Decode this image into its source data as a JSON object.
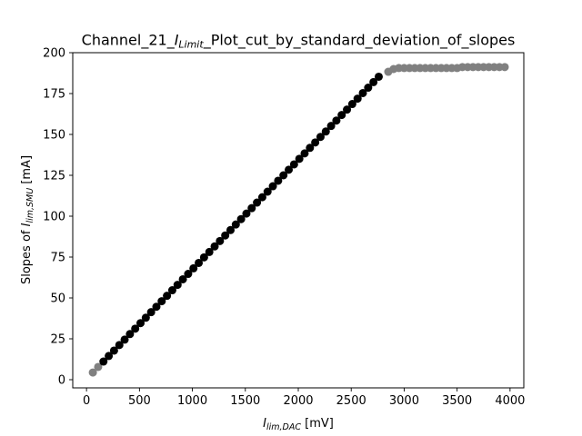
{
  "chart_data": {
    "type": "scatter",
    "title": {
      "prefix": "Channel_21_",
      "italic": "I",
      "sub": "Limit",
      "suffix": "_Plot_cut_by_standard_deviation_of_slopes"
    },
    "xlabel": {
      "italic": "I",
      "sub": "lim,DAC",
      "suffix": " [mV]"
    },
    "ylabel": {
      "prefix": "Slopes of ",
      "italic": "I",
      "sub": "lim,SMU",
      "suffix": " [mA]"
    },
    "xlim": [
      -130,
      4130
    ],
    "ylim": [
      -5,
      200
    ],
    "xticks": [
      0,
      500,
      1000,
      1500,
      2000,
      2500,
      3000,
      3500,
      4000
    ],
    "xtick_labels": [
      "0",
      "500",
      "1000",
      "1500",
      "2000",
      "2500",
      "3000",
      "3500",
      "4000"
    ],
    "yticks": [
      0,
      25,
      50,
      75,
      100,
      125,
      150,
      175,
      200
    ],
    "ytick_labels": [
      "0",
      "25",
      "50",
      "75",
      "100",
      "125",
      "150",
      "175",
      "200"
    ],
    "grid": false,
    "legend": "none",
    "series": [
      {
        "color": "#808080",
        "points": [
          [
            60,
            4.4
          ],
          [
            110,
            7.8
          ],
          [
            2850,
            188.3
          ],
          [
            2900,
            190.0
          ],
          [
            2950,
            190.6
          ],
          [
            3000,
            190.6
          ],
          [
            3050,
            190.6
          ],
          [
            3100,
            190.6
          ],
          [
            3150,
            190.6
          ],
          [
            3200,
            190.6
          ],
          [
            3250,
            190.6
          ],
          [
            3300,
            190.6
          ],
          [
            3350,
            190.6
          ],
          [
            3400,
            190.6
          ],
          [
            3450,
            190.6
          ],
          [
            3500,
            190.6
          ],
          [
            3550,
            191.2
          ],
          [
            3600,
            191.2
          ],
          [
            3650,
            191.2
          ],
          [
            3700,
            191.2
          ],
          [
            3750,
            191.2
          ],
          [
            3800,
            191.2
          ],
          [
            3850,
            191.2
          ],
          [
            3900,
            191.2
          ],
          [
            3950,
            191.2
          ]
        ]
      },
      {
        "color": "#000000",
        "points": [
          [
            160,
            11.1
          ],
          [
            210,
            14.5
          ],
          [
            260,
            17.8
          ],
          [
            310,
            21.2
          ],
          [
            360,
            24.5
          ],
          [
            410,
            27.9
          ],
          [
            460,
            31.2
          ],
          [
            510,
            34.6
          ],
          [
            560,
            37.9
          ],
          [
            610,
            41.3
          ],
          [
            660,
            44.6
          ],
          [
            710,
            48.0
          ],
          [
            760,
            51.3
          ],
          [
            810,
            54.7
          ],
          [
            860,
            58.0
          ],
          [
            910,
            61.4
          ],
          [
            960,
            64.7
          ],
          [
            1010,
            68.1
          ],
          [
            1060,
            71.4
          ],
          [
            1110,
            74.8
          ],
          [
            1160,
            78.1
          ],
          [
            1210,
            81.5
          ],
          [
            1260,
            84.8
          ],
          [
            1310,
            88.2
          ],
          [
            1360,
            91.5
          ],
          [
            1410,
            94.9
          ],
          [
            1460,
            98.2
          ],
          [
            1510,
            101.6
          ],
          [
            1560,
            104.9
          ],
          [
            1610,
            108.3
          ],
          [
            1660,
            111.6
          ],
          [
            1710,
            115.0
          ],
          [
            1760,
            118.3
          ],
          [
            1810,
            121.7
          ],
          [
            1860,
            125.0
          ],
          [
            1910,
            128.4
          ],
          [
            1960,
            131.7
          ],
          [
            2010,
            135.1
          ],
          [
            2060,
            138.4
          ],
          [
            2110,
            141.8
          ],
          [
            2160,
            145.1
          ],
          [
            2210,
            148.5
          ],
          [
            2260,
            151.8
          ],
          [
            2310,
            155.2
          ],
          [
            2360,
            158.5
          ],
          [
            2410,
            161.9
          ],
          [
            2460,
            165.2
          ],
          [
            2510,
            168.6
          ],
          [
            2560,
            171.9
          ],
          [
            2610,
            175.3
          ],
          [
            2660,
            178.6
          ],
          [
            2710,
            182.0
          ],
          [
            2760,
            185.3
          ]
        ]
      }
    ]
  }
}
